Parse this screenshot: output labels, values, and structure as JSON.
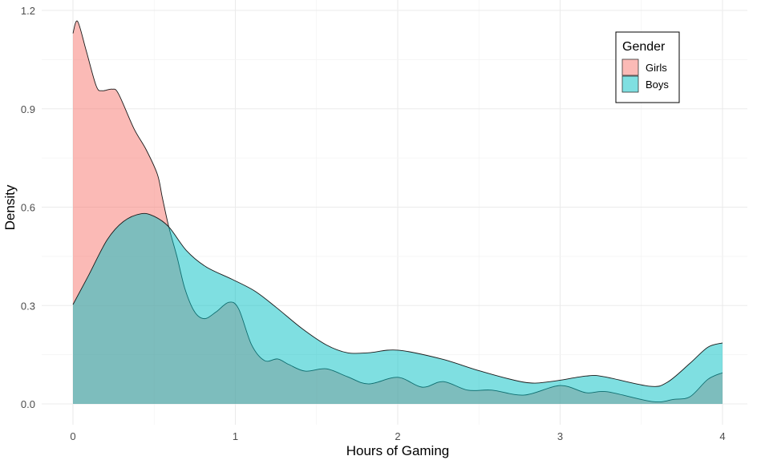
{
  "chart_data": {
    "type": "area",
    "subtype": "density",
    "title": "",
    "xlabel": "Hours of Gaming",
    "ylabel": "Density",
    "xlim": [
      0,
      4
    ],
    "ylim": [
      0,
      1.2
    ],
    "x_ticks": [
      "0",
      "1",
      "2",
      "3",
      "4"
    ],
    "x_tick_values": [
      0,
      1,
      2,
      3,
      4
    ],
    "y_ticks": [
      "0.0",
      "0.3",
      "0.6",
      "0.9",
      "1.2"
    ],
    "y_tick_values": [
      0,
      0.3,
      0.6,
      0.9,
      1.2
    ],
    "grid": true,
    "legend": {
      "title": "Gender",
      "position": "top-right"
    },
    "series": [
      {
        "name": "Girls",
        "color": "#F8766D",
        "alpha": 0.5,
        "points": [
          [
            0,
            1.13
          ],
          [
            0.028,
            1.167
          ],
          [
            0.08,
            1.08
          ],
          [
            0.143,
            0.97
          ],
          [
            0.18,
            0.955
          ],
          [
            0.24,
            0.96
          ],
          [
            0.28,
            0.946
          ],
          [
            0.375,
            0.84
          ],
          [
            0.45,
            0.776
          ],
          [
            0.52,
            0.7
          ],
          [
            0.55,
            0.63
          ],
          [
            0.59,
            0.54
          ],
          [
            0.64,
            0.45
          ],
          [
            0.69,
            0.35
          ],
          [
            0.75,
            0.28
          ],
          [
            0.81,
            0.26
          ],
          [
            0.88,
            0.28
          ],
          [
            0.96,
            0.31
          ],
          [
            1.02,
            0.29
          ],
          [
            1.1,
            0.18
          ],
          [
            1.18,
            0.132
          ],
          [
            1.26,
            0.137
          ],
          [
            1.33,
            0.12
          ],
          [
            1.43,
            0.1
          ],
          [
            1.56,
            0.107
          ],
          [
            1.69,
            0.083
          ],
          [
            1.82,
            0.061
          ],
          [
            2.0,
            0.081
          ],
          [
            2.15,
            0.051
          ],
          [
            2.28,
            0.068
          ],
          [
            2.43,
            0.042
          ],
          [
            2.58,
            0.042
          ],
          [
            2.78,
            0.027
          ],
          [
            3.0,
            0.056
          ],
          [
            3.16,
            0.034
          ],
          [
            3.29,
            0.037
          ],
          [
            3.57,
            0.007
          ],
          [
            3.7,
            0.014
          ],
          [
            3.8,
            0.022
          ],
          [
            3.91,
            0.075
          ],
          [
            4.0,
            0.095
          ]
        ]
      },
      {
        "name": "Boys",
        "color": "#00BFC4",
        "alpha": 0.5,
        "points": [
          [
            0,
            0.303
          ],
          [
            0.094,
            0.39
          ],
          [
            0.21,
            0.5
          ],
          [
            0.31,
            0.556
          ],
          [
            0.42,
            0.58
          ],
          [
            0.5,
            0.572
          ],
          [
            0.59,
            0.54
          ],
          [
            0.7,
            0.467
          ],
          [
            0.82,
            0.418
          ],
          [
            0.98,
            0.38
          ],
          [
            1.12,
            0.344
          ],
          [
            1.25,
            0.295
          ],
          [
            1.41,
            0.23
          ],
          [
            1.56,
            0.18
          ],
          [
            1.69,
            0.156
          ],
          [
            1.82,
            0.156
          ],
          [
            2.0,
            0.164
          ],
          [
            2.27,
            0.137
          ],
          [
            2.51,
            0.1
          ],
          [
            2.78,
            0.066
          ],
          [
            2.94,
            0.068
          ],
          [
            3.16,
            0.085
          ],
          [
            3.27,
            0.083
          ],
          [
            3.55,
            0.054
          ],
          [
            3.66,
            0.066
          ],
          [
            3.8,
            0.124
          ],
          [
            3.91,
            0.173
          ],
          [
            4.0,
            0.186
          ]
        ]
      }
    ]
  }
}
